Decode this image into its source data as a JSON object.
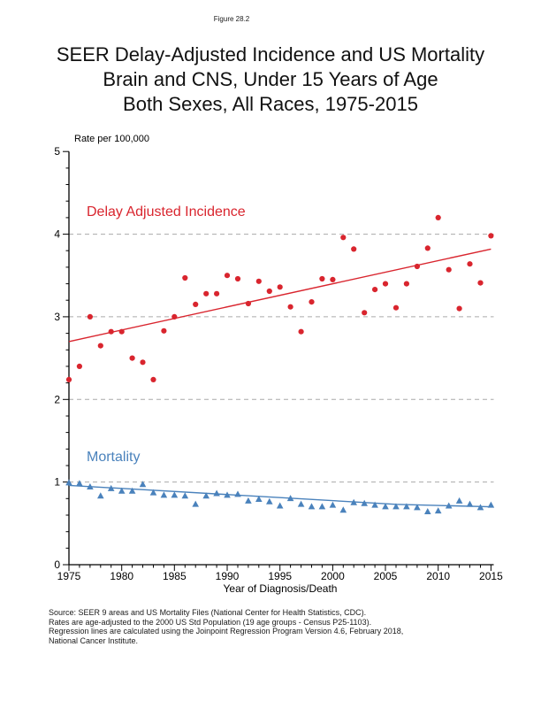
{
  "page": {
    "figure_label": "Figure 28.2",
    "title_lines": [
      "SEER Delay-Adjusted Incidence and US Mortality",
      "Brain and CNS, Under 15 Years of Age",
      "Both Sexes, All Races, 1975-2015"
    ],
    "footer_lines": [
      "Source: SEER 9 areas and US Mortality Files (National Center for Health Statistics, CDC).",
      "Rates are age-adjusted to the 2000 US Std Population (19 age groups - Census P25-1103).",
      "Regression lines are calculated using the Joinpoint Regression Program Version 4.6, February 2018,",
      "National Cancer Institute."
    ]
  },
  "chart_data": {
    "type": "scatter",
    "title": "SEER Delay-Adjusted Incidence and US Mortality, Brain and CNS, Under 15 Years of Age, Both Sexes, All Races, 1975-2015",
    "xlabel": "Year of Diagnosis/Death",
    "ylabel": "Rate per 100,000",
    "xlim": [
      1975,
      2015
    ],
    "ylim": [
      0,
      5
    ],
    "x_ticks": [
      1975,
      1980,
      1985,
      1990,
      1995,
      2000,
      2005,
      2010,
      2015
    ],
    "y_ticks": [
      0,
      1,
      2,
      3,
      4,
      5
    ],
    "x_minor_tick_interval": 1,
    "y_minor_tick_interval": 0.2,
    "y_gridlines": [
      1,
      2,
      3,
      4
    ],
    "grid_style": "horizontal-dashed",
    "legend_position": "inline-labels",
    "colors": {
      "grid": "#aaaaaa",
      "axis": "#000000"
    },
    "x": [
      1975,
      1976,
      1977,
      1978,
      1979,
      1980,
      1981,
      1982,
      1983,
      1984,
      1985,
      1986,
      1987,
      1988,
      1989,
      1990,
      1991,
      1992,
      1993,
      1994,
      1995,
      1996,
      1997,
      1998,
      1999,
      2000,
      2001,
      2002,
      2003,
      2004,
      2005,
      2006,
      2007,
      2008,
      2009,
      2010,
      2011,
      2012,
      2013,
      2014,
      2015
    ],
    "series": [
      {
        "id": "incidence",
        "name": "Delay Adjusted Incidence",
        "marker": "circle",
        "color": "#D9252E",
        "values": [
          2.24,
          2.4,
          3.0,
          2.65,
          2.82,
          2.82,
          2.5,
          2.45,
          2.24,
          2.83,
          3.0,
          3.47,
          3.15,
          3.28,
          3.28,
          3.5,
          3.46,
          3.16,
          3.43,
          3.31,
          3.36,
          3.12,
          2.82,
          3.18,
          3.46,
          3.45,
          3.96,
          3.82,
          3.05,
          3.33,
          3.4,
          3.11,
          3.4,
          3.61,
          3.83,
          4.2,
          3.57,
          3.1,
          3.64,
          3.41,
          3.98
        ],
        "trend": [
          [
            1975,
            2.7
          ],
          [
            2015,
            3.82
          ]
        ]
      },
      {
        "id": "mortality",
        "name": "Mortality",
        "marker": "triangle",
        "color": "#4A82BC",
        "values": [
          0.99,
          0.98,
          0.94,
          0.83,
          0.92,
          0.89,
          0.89,
          0.97,
          0.87,
          0.84,
          0.84,
          0.83,
          0.73,
          0.83,
          0.86,
          0.84,
          0.85,
          0.77,
          0.79,
          0.76,
          0.71,
          0.8,
          0.73,
          0.7,
          0.7,
          0.72,
          0.66,
          0.75,
          0.74,
          0.72,
          0.7,
          0.7,
          0.7,
          0.69,
          0.64,
          0.65,
          0.71,
          0.77,
          0.73,
          0.69,
          0.72
        ],
        "trend": [
          [
            1975,
            0.96
          ],
          [
            2006,
            0.73
          ],
          [
            2015,
            0.7
          ]
        ]
      }
    ]
  }
}
